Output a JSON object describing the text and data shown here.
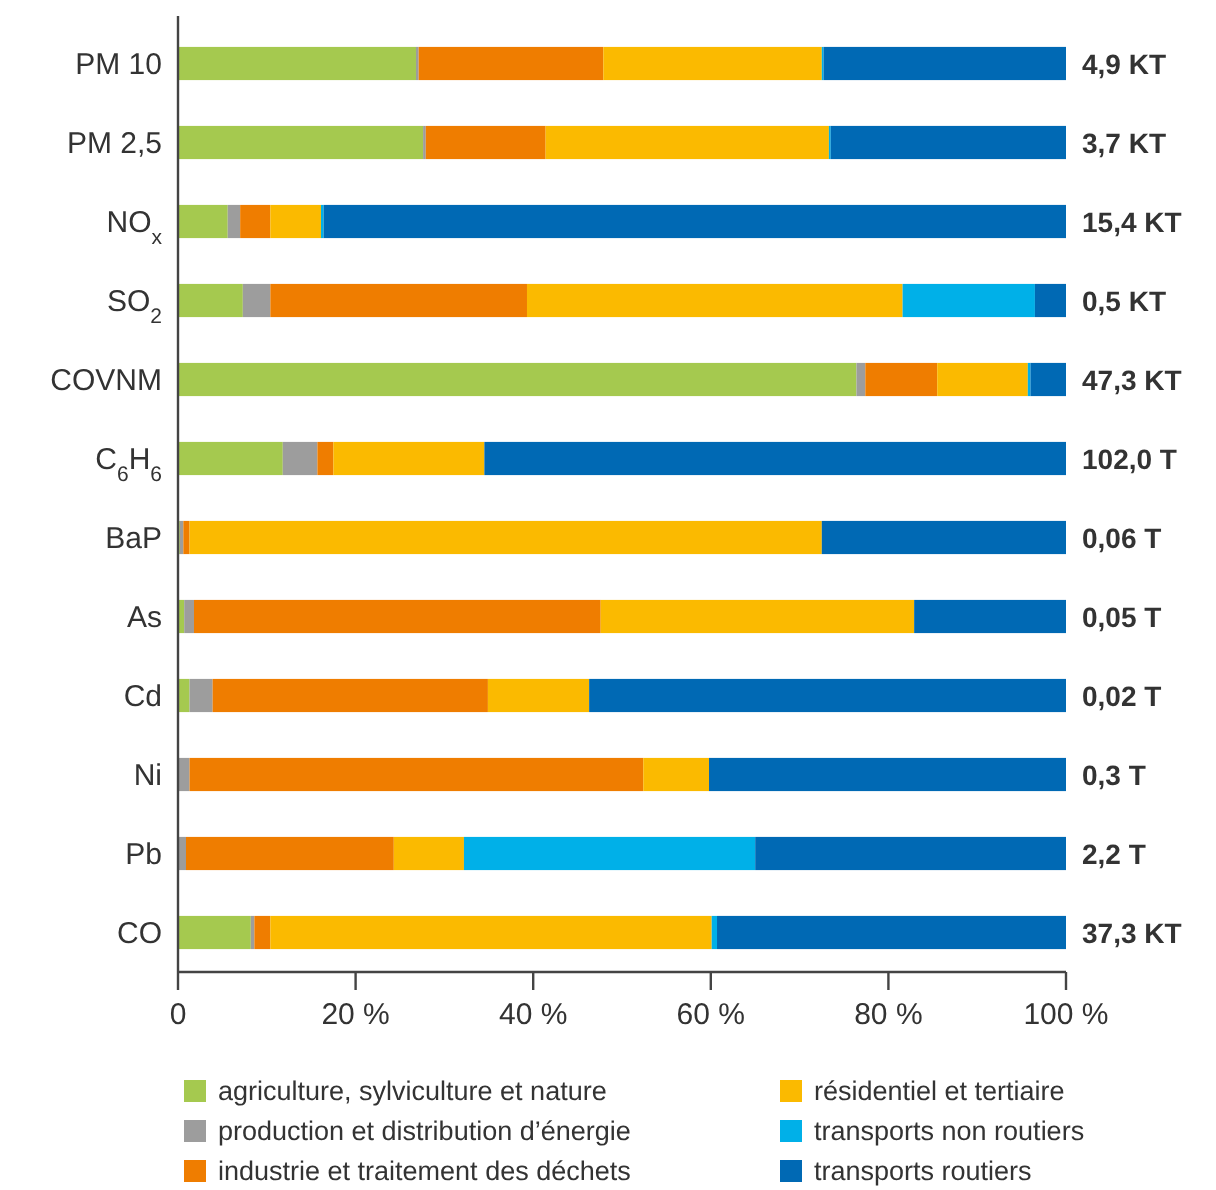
{
  "chart_data": {
    "type": "bar",
    "orientation": "horizontal",
    "stacked": true,
    "categories": [
      "PM 10",
      "PM 2,5",
      "NO$_{x}$",
      "SO$_{2}$",
      "COVNM",
      "C$_{6}$H$_{6}$",
      "BaP",
      "As",
      "Cd",
      "Ni",
      "Pb",
      "CO"
    ],
    "series": [
      {
        "name": "agriculture, sylviculture et nature",
        "color": "#a5c94f",
        "values": [
          26.8,
          27.6,
          5.6,
          7.3,
          76.4,
          11.8,
          0.2,
          0.7,
          1.3,
          0,
          0,
          8.2
        ]
      },
      {
        "name": "production et distribution d’énergie",
        "color": "#9d9d9d",
        "values": [
          0.3,
          0.3,
          1.4,
          3.1,
          1.0,
          3.9,
          0.4,
          1.1,
          2.6,
          1.3,
          0.9,
          0.4
        ]
      },
      {
        "name": "industrie et traitement des déchets",
        "color": "#ef7d00",
        "values": [
          20.8,
          13.5,
          3.4,
          28.9,
          8.1,
          1.8,
          0.7,
          45.8,
          31.0,
          51.1,
          23.4,
          1.8
        ]
      },
      {
        "name": "résidentiel et tertiaire",
        "color": "#fbba00",
        "values": [
          24.6,
          31.9,
          5.7,
          42.3,
          10.2,
          17.0,
          71.2,
          35.3,
          11.4,
          7.4,
          7.9,
          49.7
        ]
      },
      {
        "name": "transports non routiers",
        "color": "#00b0e8",
        "values": [
          0.2,
          0.2,
          0.3,
          14.9,
          0.3,
          0,
          0,
          0,
          0,
          0,
          32.8,
          0.6
        ]
      },
      {
        "name": "transports routiers",
        "color": "#0069b4",
        "values": [
          27.3,
          26.5,
          83.6,
          3.5,
          4.0,
          65.5,
          27.5,
          17.1,
          53.7,
          40.2,
          35.0,
          39.3
        ]
      }
    ],
    "annotations": [
      "4,9 KT",
      "3,7 KT",
      "15,4 KT",
      "0,5 KT",
      "47,3 KT",
      "102,0 T",
      "0,06 T",
      "0,05 T",
      "0,02 T",
      "0,3 T",
      "2,2 T",
      "37,3 KT"
    ],
    "xlim": [
      0,
      100
    ],
    "xticks": [
      0,
      {
        "value": 20,
        "label": "20 %"
      },
      {
        "value": 40,
        "label": "40 %"
      },
      {
        "value": 60,
        "label": "60 %"
      },
      {
        "value": 80,
        "label": "80 %"
      },
      {
        "value": 100,
        "label": "100 %"
      }
    ],
    "grid": false,
    "legend": "bottom"
  }
}
